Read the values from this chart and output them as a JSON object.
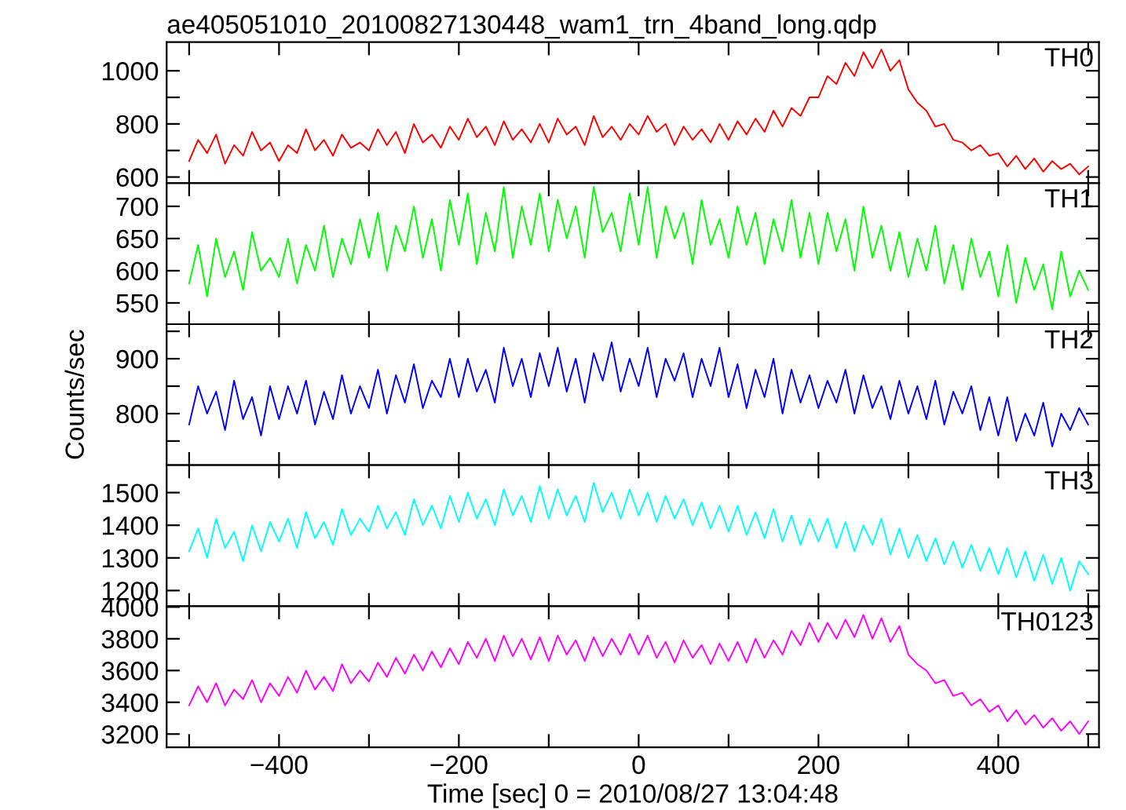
{
  "chart_data": [
    {
      "type": "line",
      "title": "ae405051010_20100827130448_wam1_trn_4band_long.qdp",
      "xlim": [
        -525,
        512
      ],
      "xticks": [
        {
          "value": -500,
          "label": null
        },
        {
          "value": -400,
          "label": null
        },
        {
          "value": -300,
          "label": null
        },
        {
          "value": -200,
          "label": null
        },
        {
          "value": -100,
          "label": null
        },
        {
          "value": 0,
          "label": null
        },
        {
          "value": 100,
          "label": null
        },
        {
          "value": 200,
          "label": null
        },
        {
          "value": 300,
          "label": null
        },
        {
          "value": 400,
          "label": null
        },
        {
          "value": 500,
          "label": null
        }
      ],
      "ylim": [
        577,
        1108
      ],
      "yticks": [
        600,
        {
          "value": 700,
          "label": null
        },
        800,
        {
          "value": 900,
          "label": null
        },
        1000
      ],
      "tick_labels": "y",
      "grid": false,
      "legend": "top right",
      "x": [
        -500,
        -490,
        -480,
        -470,
        -460,
        -450,
        -440,
        -430,
        -420,
        -410,
        -400,
        -390,
        -380,
        -370,
        -360,
        -350,
        -340,
        -330,
        -320,
        -310,
        -300,
        -290,
        -280,
        -270,
        -260,
        -250,
        -240,
        -230,
        -220,
        -210,
        -200,
        -190,
        -180,
        -170,
        -160,
        -150,
        -140,
        -130,
        -120,
        -110,
        -100,
        -90,
        -80,
        -70,
        -60,
        -50,
        -40,
        -30,
        -20,
        -10,
        0,
        10,
        20,
        30,
        40,
        50,
        60,
        70,
        80,
        90,
        100,
        110,
        120,
        130,
        140,
        150,
        160,
        170,
        180,
        190,
        200,
        210,
        220,
        230,
        240,
        250,
        260,
        270,
        280,
        290,
        300,
        310,
        320,
        330,
        340,
        350,
        360,
        370,
        380,
        390,
        400,
        410,
        420,
        430,
        440,
        450,
        460,
        470,
        480,
        490,
        500
      ],
      "series": [
        {
          "name": "TH0",
          "color": "#ff0000",
          "values": [
            660,
            740,
            690,
            760,
            650,
            720,
            680,
            770,
            700,
            730,
            660,
            720,
            690,
            780,
            700,
            740,
            680,
            760,
            710,
            730,
            700,
            780,
            720,
            770,
            690,
            800,
            730,
            760,
            710,
            790,
            740,
            820,
            750,
            790,
            720,
            810,
            740,
            780,
            730,
            800,
            730,
            820,
            760,
            790,
            720,
            830,
            750,
            790,
            740,
            800,
            760,
            830,
            770,
            800,
            720,
            790,
            740,
            780,
            730,
            800,
            740,
            810,
            760,
            820,
            770,
            850,
            790,
            860,
            830,
            900,
            900,
            980,
            950,
            1030,
            980,
            1070,
            1010,
            1080,
            1000,
            1040,
            930,
            880,
            850,
            790,
            800,
            740,
            730,
            700,
            720,
            680,
            690,
            640,
            680,
            630,
            670,
            620,
            660,
            630,
            650,
            610,
            640
          ]
        }
      ]
    },
    {
      "type": "line",
      "xlim": [
        -525,
        512
      ],
      "xticks": [
        {
          "value": -500,
          "label": null
        },
        {
          "value": -400,
          "label": null
        },
        {
          "value": -300,
          "label": null
        },
        {
          "value": -200,
          "label": null
        },
        {
          "value": -100,
          "label": null
        },
        {
          "value": 0,
          "label": null
        },
        {
          "value": 100,
          "label": null
        },
        {
          "value": 200,
          "label": null
        },
        {
          "value": 300,
          "label": null
        },
        {
          "value": 400,
          "label": null
        },
        {
          "value": 500,
          "label": null
        }
      ],
      "ylim": [
        517,
        736
      ],
      "yticks": [
        550,
        600,
        650,
        700
      ],
      "tick_labels": "y",
      "grid": false,
      "legend": "top right",
      "x": [
        -500,
        -490,
        -480,
        -470,
        -460,
        -450,
        -440,
        -430,
        -420,
        -410,
        -400,
        -390,
        -380,
        -370,
        -360,
        -350,
        -340,
        -330,
        -320,
        -310,
        -300,
        -290,
        -280,
        -270,
        -260,
        -250,
        -240,
        -230,
        -220,
        -210,
        -200,
        -190,
        -180,
        -170,
        -160,
        -150,
        -140,
        -130,
        -120,
        -110,
        -100,
        -90,
        -80,
        -70,
        -60,
        -50,
        -40,
        -30,
        -20,
        -10,
        0,
        10,
        20,
        30,
        40,
        50,
        60,
        70,
        80,
        90,
        100,
        110,
        120,
        130,
        140,
        150,
        160,
        170,
        180,
        190,
        200,
        210,
        220,
        230,
        240,
        250,
        260,
        270,
        280,
        290,
        300,
        310,
        320,
        330,
        340,
        350,
        360,
        370,
        380,
        390,
        400,
        410,
        420,
        430,
        440,
        450,
        460,
        470,
        480,
        490,
        500
      ],
      "series": [
        {
          "name": "TH1",
          "color": "#00ff00",
          "values": [
            580,
            640,
            560,
            650,
            590,
            630,
            570,
            660,
            600,
            620,
            590,
            650,
            580,
            640,
            600,
            670,
            590,
            650,
            610,
            680,
            620,
            690,
            600,
            670,
            630,
            700,
            620,
            680,
            600,
            710,
            640,
            720,
            610,
            690,
            630,
            730,
            620,
            700,
            640,
            720,
            630,
            710,
            650,
            700,
            620,
            730,
            660,
            690,
            630,
            720,
            640,
            730,
            620,
            700,
            650,
            690,
            610,
            710,
            640,
            680,
            620,
            700,
            640,
            690,
            610,
            680,
            630,
            710,
            620,
            690,
            610,
            690,
            630,
            680,
            600,
            700,
            620,
            670,
            600,
            660,
            590,
            650,
            600,
            670,
            580,
            640,
            570,
            650,
            590,
            630,
            560,
            640,
            550,
            620,
            570,
            610,
            540,
            630,
            560,
            600,
            570
          ]
        }
      ]
    },
    {
      "type": "line",
      "ylabel": "Counts/sec",
      "xlim": [
        -525,
        512
      ],
      "xticks": [
        {
          "value": -500,
          "label": null
        },
        {
          "value": -400,
          "label": null
        },
        {
          "value": -300,
          "label": null
        },
        {
          "value": -200,
          "label": null
        },
        {
          "value": -100,
          "label": null
        },
        {
          "value": 0,
          "label": null
        },
        {
          "value": 100,
          "label": null
        },
        {
          "value": 200,
          "label": null
        },
        {
          "value": 300,
          "label": null
        },
        {
          "value": 400,
          "label": null
        },
        {
          "value": 500,
          "label": null
        }
      ],
      "ylim": [
        706,
        963
      ],
      "yticks": [
        {
          "value": 750,
          "label": null
        },
        800,
        {
          "value": 850,
          "label": null
        },
        900,
        {
          "value": 950,
          "label": null
        }
      ],
      "tick_labels": "y",
      "grid": false,
      "legend": "top right",
      "x": [
        -500,
        -490,
        -480,
        -470,
        -460,
        -450,
        -440,
        -430,
        -420,
        -410,
        -400,
        -390,
        -380,
        -370,
        -360,
        -350,
        -340,
        -330,
        -320,
        -310,
        -300,
        -290,
        -280,
        -270,
        -260,
        -250,
        -240,
        -230,
        -220,
        -210,
        -200,
        -190,
        -180,
        -170,
        -160,
        -150,
        -140,
        -130,
        -120,
        -110,
        -100,
        -90,
        -80,
        -70,
        -60,
        -50,
        -40,
        -30,
        -20,
        -10,
        0,
        10,
        20,
        30,
        40,
        50,
        60,
        70,
        80,
        90,
        100,
        110,
        120,
        130,
        140,
        150,
        160,
        170,
        180,
        190,
        200,
        210,
        220,
        230,
        240,
        250,
        260,
        270,
        280,
        290,
        300,
        310,
        320,
        330,
        340,
        350,
        360,
        370,
        380,
        390,
        400,
        410,
        420,
        430,
        440,
        450,
        460,
        470,
        480,
        490,
        500
      ],
      "series": [
        {
          "name": "TH2",
          "color": "#0000ff",
          "values": [
            780,
            850,
            800,
            840,
            770,
            860,
            790,
            830,
            760,
            850,
            790,
            850,
            800,
            860,
            780,
            840,
            790,
            870,
            800,
            850,
            810,
            880,
            800,
            870,
            820,
            890,
            810,
            860,
            830,
            900,
            830,
            900,
            840,
            880,
            820,
            920,
            850,
            900,
            830,
            910,
            850,
            920,
            840,
            900,
            820,
            910,
            860,
            930,
            840,
            900,
            850,
            920,
            830,
            900,
            860,
            910,
            830,
            900,
            850,
            920,
            830,
            890,
            810,
            880,
            830,
            900,
            800,
            880,
            820,
            870,
            810,
            860,
            820,
            880,
            800,
            870,
            810,
            850,
            790,
            860,
            800,
            850,
            790,
            860,
            780,
            840,
            800,
            850,
            770,
            830,
            760,
            830,
            750,
            800,
            760,
            820,
            740,
            800,
            770,
            810,
            780
          ]
        }
      ]
    },
    {
      "type": "line",
      "xlim": [
        -525,
        512
      ],
      "xticks": [
        {
          "value": -500,
          "label": null
        },
        {
          "value": -400,
          "label": null
        },
        {
          "value": -300,
          "label": null
        },
        {
          "value": -200,
          "label": null
        },
        {
          "value": -100,
          "label": null
        },
        {
          "value": 0,
          "label": null
        },
        {
          "value": 100,
          "label": null
        },
        {
          "value": 200,
          "label": null
        },
        {
          "value": 300,
          "label": null
        },
        {
          "value": 400,
          "label": null
        },
        {
          "value": 500,
          "label": null
        }
      ],
      "ylim": [
        1152,
        1584
      ],
      "yticks": [
        1200,
        1300,
        1400,
        1500
      ],
      "tick_labels": "y",
      "grid": false,
      "legend": "top right",
      "x": [
        -500,
        -490,
        -480,
        -470,
        -460,
        -450,
        -440,
        -430,
        -420,
        -410,
        -400,
        -390,
        -380,
        -370,
        -360,
        -350,
        -340,
        -330,
        -320,
        -310,
        -300,
        -290,
        -280,
        -270,
        -260,
        -250,
        -240,
        -230,
        -220,
        -210,
        -200,
        -190,
        -180,
        -170,
        -160,
        -150,
        -140,
        -130,
        -120,
        -110,
        -100,
        -90,
        -80,
        -70,
        -60,
        -50,
        -40,
        -30,
        -20,
        -10,
        0,
        10,
        20,
        30,
        40,
        50,
        60,
        70,
        80,
        90,
        100,
        110,
        120,
        130,
        140,
        150,
        160,
        170,
        180,
        190,
        200,
        210,
        220,
        230,
        240,
        250,
        260,
        270,
        280,
        290,
        300,
        310,
        320,
        330,
        340,
        350,
        360,
        370,
        380,
        390,
        400,
        410,
        420,
        430,
        440,
        450,
        460,
        470,
        480,
        490,
        500
      ],
      "series": [
        {
          "name": "TH3",
          "color": "#00ffff",
          "values": [
            1320,
            1390,
            1300,
            1420,
            1330,
            1380,
            1290,
            1400,
            1320,
            1410,
            1350,
            1420,
            1330,
            1440,
            1360,
            1410,
            1340,
            1450,
            1370,
            1420,
            1380,
            1460,
            1390,
            1440,
            1370,
            1480,
            1400,
            1460,
            1390,
            1490,
            1410,
            1500,
            1420,
            1480,
            1400,
            1510,
            1430,
            1490,
            1410,
            1520,
            1420,
            1510,
            1430,
            1490,
            1410,
            1530,
            1440,
            1500,
            1420,
            1510,
            1430,
            1500,
            1410,
            1490,
            1420,
            1480,
            1400,
            1470,
            1390,
            1460,
            1380,
            1460,
            1370,
            1440,
            1360,
            1450,
            1350,
            1430,
            1340,
            1420,
            1350,
            1420,
            1330,
            1410,
            1320,
            1400,
            1340,
            1420,
            1310,
            1390,
            1300,
            1370,
            1290,
            1360,
            1280,
            1350,
            1270,
            1340,
            1260,
            1330,
            1250,
            1330,
            1240,
            1320,
            1230,
            1310,
            1220,
            1300,
            1200,
            1290,
            1250
          ]
        }
      ]
    },
    {
      "type": "line",
      "xlabel": "Time [sec] 0 = 2010/08/27 13:04:48",
      "xlim": [
        -525,
        512
      ],
      "xticks": [
        {
          "value": -500,
          "label": null
        },
        {
          "value": -400,
          "label": "−400"
        },
        {
          "value": -300,
          "label": null
        },
        {
          "value": -200,
          "label": "−200"
        },
        {
          "value": -100,
          "label": null
        },
        0,
        {
          "value": 100,
          "label": null
        },
        200,
        {
          "value": 300,
          "label": null
        },
        400,
        {
          "value": 500,
          "label": null
        }
      ],
      "ylim": [
        3117,
        4005
      ],
      "yticks": [
        3200,
        3400,
        3600,
        3800,
        4000
      ],
      "grid": false,
      "legend": "top right",
      "x": [
        -500,
        -490,
        -480,
        -470,
        -460,
        -450,
        -440,
        -430,
        -420,
        -410,
        -400,
        -390,
        -380,
        -370,
        -360,
        -350,
        -340,
        -330,
        -320,
        -310,
        -300,
        -290,
        -280,
        -270,
        -260,
        -250,
        -240,
        -230,
        -220,
        -210,
        -200,
        -190,
        -180,
        -170,
        -160,
        -150,
        -140,
        -130,
        -120,
        -110,
        -100,
        -90,
        -80,
        -70,
        -60,
        -50,
        -40,
        -30,
        -20,
        -10,
        0,
        10,
        20,
        30,
        40,
        50,
        60,
        70,
        80,
        90,
        100,
        110,
        120,
        130,
        140,
        150,
        160,
        170,
        180,
        190,
        200,
        210,
        220,
        230,
        240,
        250,
        260,
        270,
        280,
        290,
        300,
        310,
        320,
        330,
        340,
        350,
        360,
        370,
        380,
        390,
        400,
        410,
        420,
        430,
        440,
        450,
        460,
        470,
        480,
        490,
        500
      ],
      "series": [
        {
          "name": "TH0123",
          "color": "#ff00ff",
          "values": [
            3380,
            3500,
            3400,
            3520,
            3380,
            3480,
            3420,
            3540,
            3400,
            3520,
            3440,
            3560,
            3460,
            3600,
            3480,
            3560,
            3470,
            3640,
            3520,
            3600,
            3530,
            3650,
            3560,
            3680,
            3580,
            3700,
            3600,
            3720,
            3620,
            3740,
            3640,
            3780,
            3680,
            3800,
            3660,
            3820,
            3690,
            3800,
            3670,
            3810,
            3660,
            3820,
            3700,
            3790,
            3660,
            3810,
            3690,
            3800,
            3700,
            3830,
            3700,
            3820,
            3680,
            3780,
            3650,
            3790,
            3680,
            3760,
            3640,
            3770,
            3660,
            3780,
            3650,
            3800,
            3680,
            3790,
            3700,
            3850,
            3760,
            3900,
            3780,
            3900,
            3800,
            3920,
            3810,
            3950,
            3800,
            3930,
            3780,
            3880,
            3700,
            3640,
            3600,
            3520,
            3540,
            3440,
            3460,
            3380,
            3420,
            3340,
            3380,
            3280,
            3350,
            3260,
            3320,
            3240,
            3300,
            3220,
            3280,
            3200,
            3280
          ]
        }
      ]
    }
  ]
}
